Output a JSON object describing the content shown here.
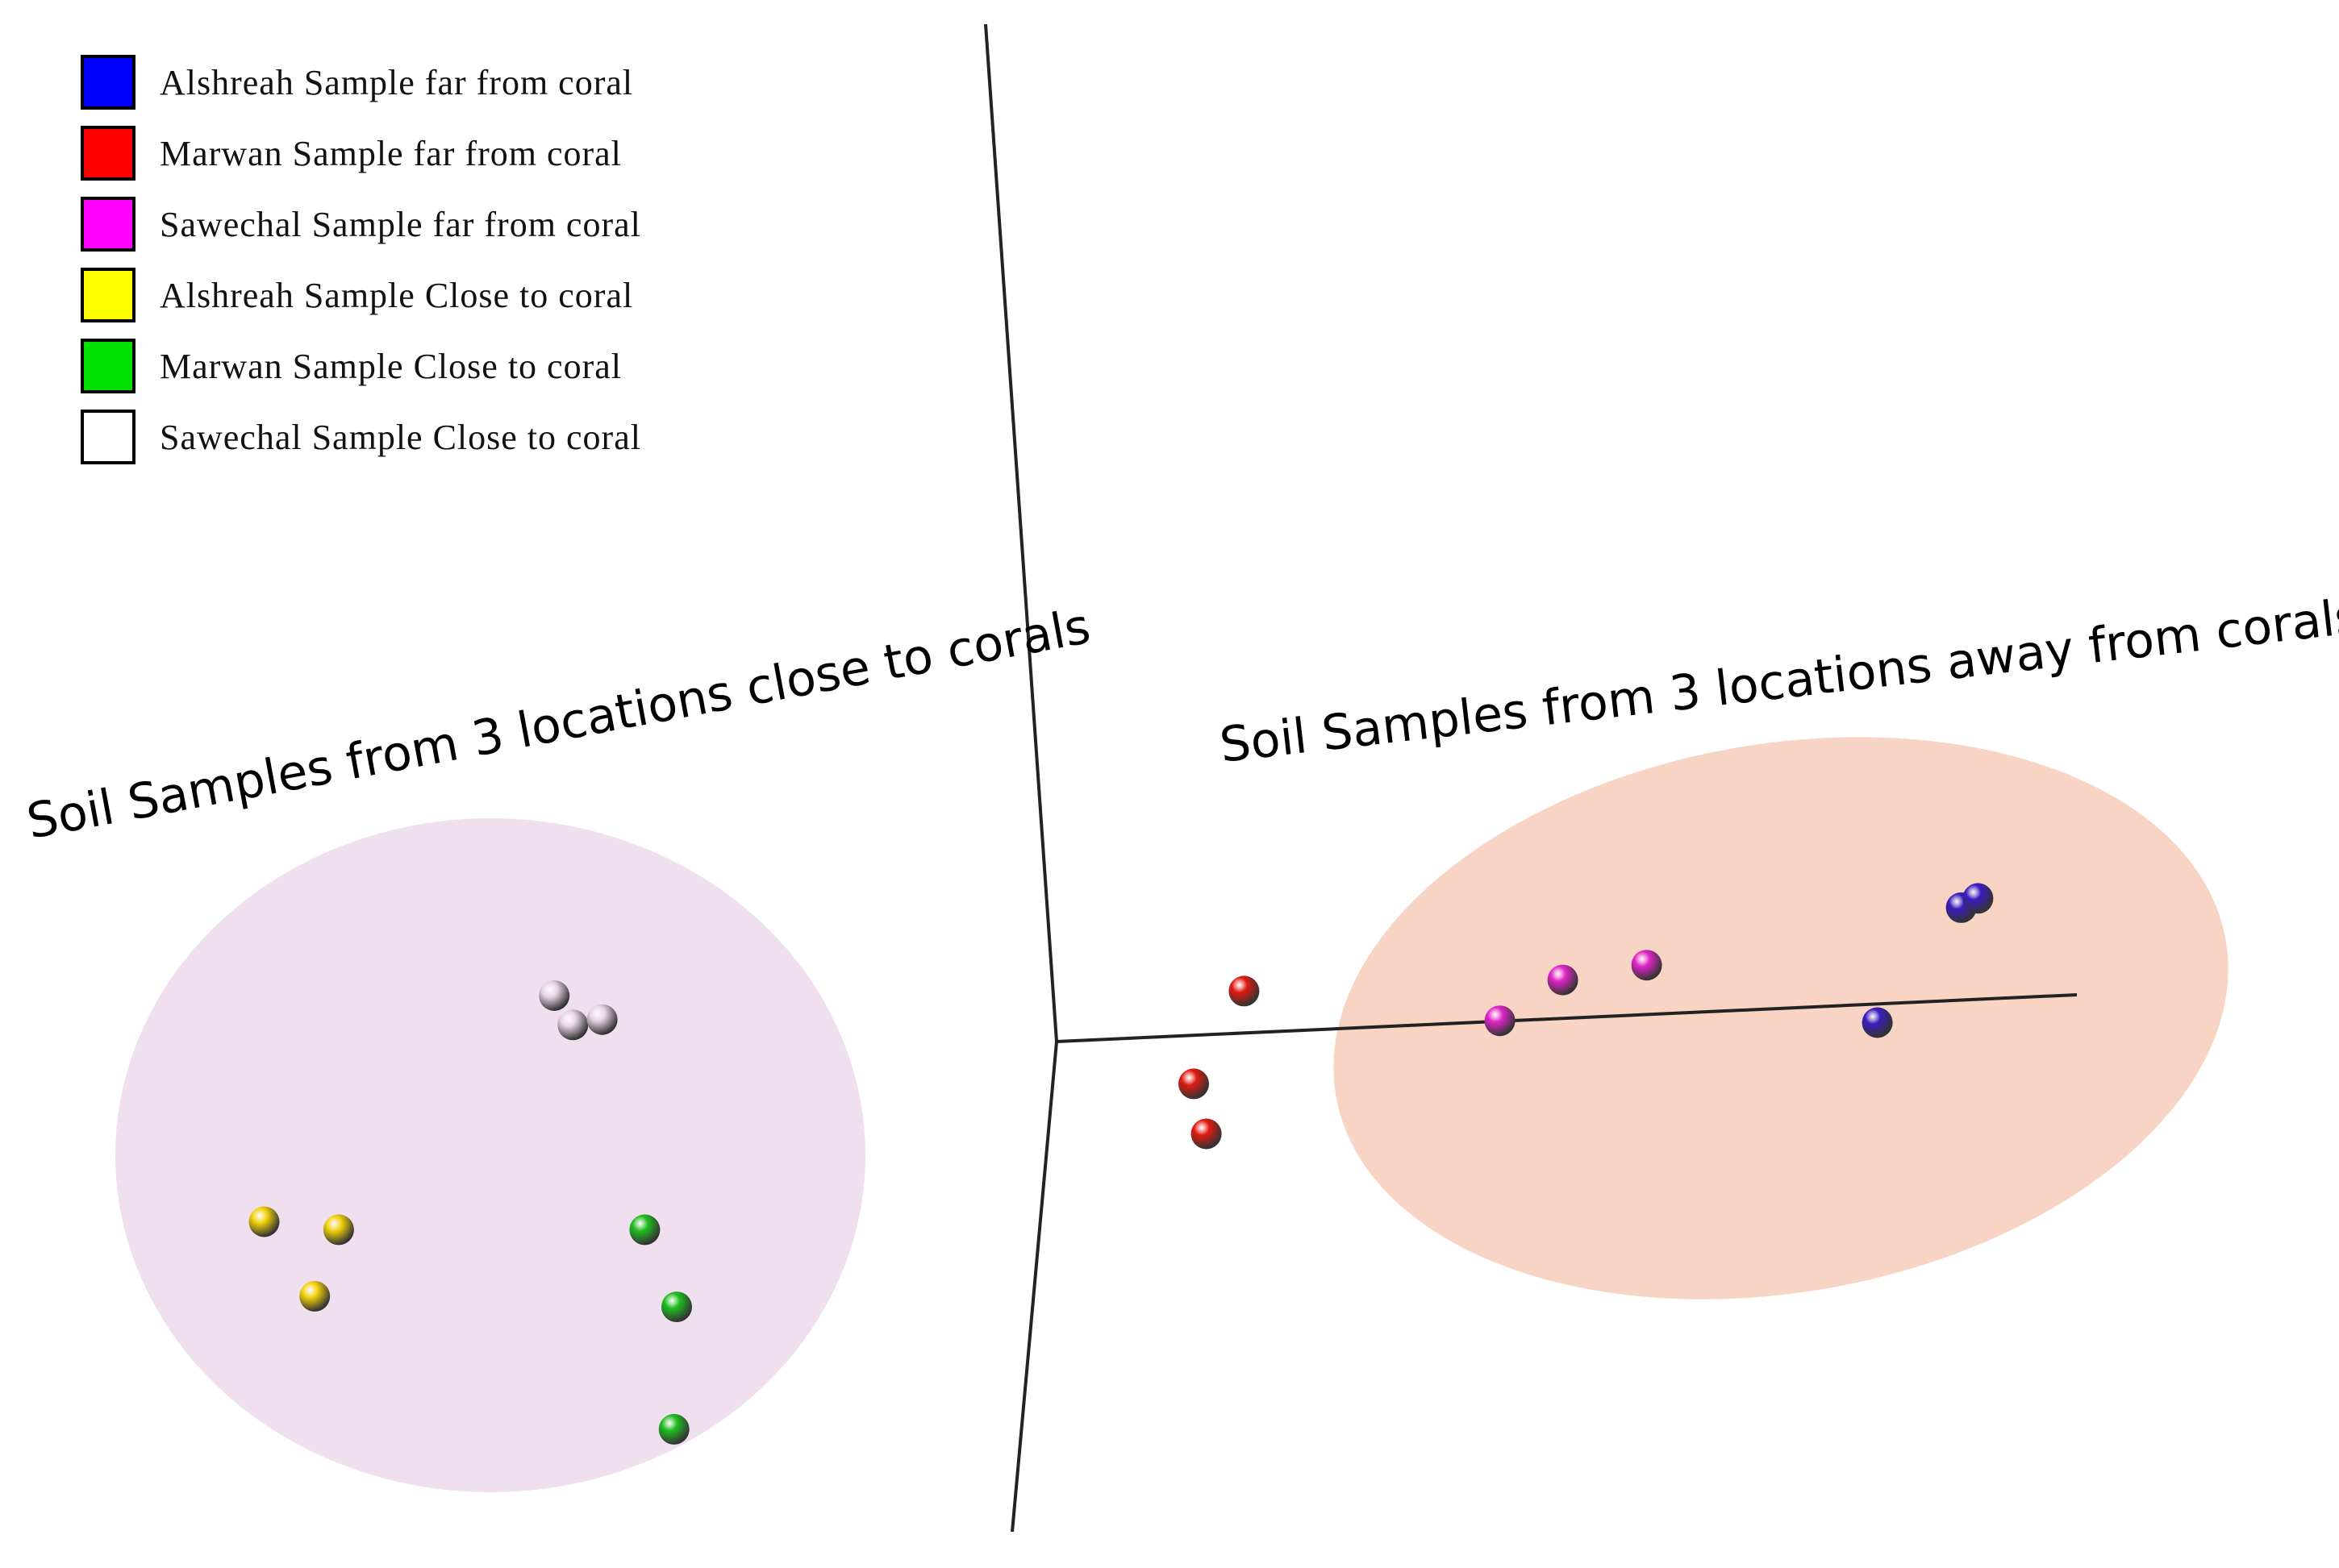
{
  "chart_data": {
    "type": "scatter",
    "legend": {
      "placement": "top-left",
      "items": [
        {
          "label": "Alshreah Sample far from coral",
          "color": "#0000ff"
        },
        {
          "label": "Marwan Sample far from coral",
          "color": "#ff0000"
        },
        {
          "label": "Sawechal Sample far from coral",
          "color": "#ff00ff"
        },
        {
          "label": "Alshreah Sample Close to coral",
          "color": "#ffff00"
        },
        {
          "label": "Marwan Sample Close to coral",
          "color": "#00e000"
        },
        {
          "label": "Sawechal Sample Close to coral",
          "color": "#ffffff"
        }
      ]
    },
    "annotations": [
      {
        "text": "Soil Samples from 3 locations close to corals",
        "group": "close"
      },
      {
        "text": "Soil Samples from 3 locations away from corals",
        "group": "far"
      }
    ],
    "series": [
      {
        "name": "Alshreah Sample far from coral",
        "color": "#3b1cc0",
        "points": [
          [
            0.83,
            0.67
          ],
          [
            0.87,
            0.72
          ],
          [
            0.63,
            0.05
          ]
        ]
      },
      {
        "name": "Marwan Sample far from coral",
        "color": "#e11a10",
        "points": [
          [
            -0.88,
            0.22
          ],
          [
            -1.0,
            -0.28
          ],
          [
            -0.97,
            -0.55
          ]
        ]
      },
      {
        "name": "Sawechal Sample far from coral",
        "color": "#e024c8",
        "points": [
          [
            -0.12,
            0.28
          ],
          [
            0.08,
            0.36
          ],
          [
            -0.27,
            0.06
          ]
        ]
      },
      {
        "name": "Alshreah Sample Close to coral",
        "color": "#f2d20a",
        "points": [
          [
            -0.85,
            -0.25
          ],
          [
            -0.57,
            -0.28
          ],
          [
            -0.66,
            -0.53
          ]
        ]
      },
      {
        "name": "Marwan Sample Close to coral",
        "color": "#1fbf1f",
        "points": [
          [
            0.58,
            -0.28
          ],
          [
            0.7,
            -0.57
          ],
          [
            0.69,
            -1.03
          ]
        ]
      },
      {
        "name": "Sawechal Sample Close to coral",
        "color": "#e8d4e6",
        "points": [
          [
            0.24,
            0.6
          ],
          [
            0.31,
            0.49
          ],
          [
            0.42,
            0.51
          ]
        ]
      }
    ],
    "clusters": [
      {
        "group": "close",
        "color": "#f0e0ef",
        "members": [
          "Alshreah Sample Close to coral",
          "Marwan Sample Close to coral",
          "Sawechal Sample Close to coral"
        ]
      },
      {
        "group": "far",
        "color": "#f7d4c3",
        "members": [
          "Alshreah Sample far from coral",
          "Marwan Sample far from coral",
          "Sawechal Sample far from coral"
        ]
      }
    ],
    "grid": false
  }
}
